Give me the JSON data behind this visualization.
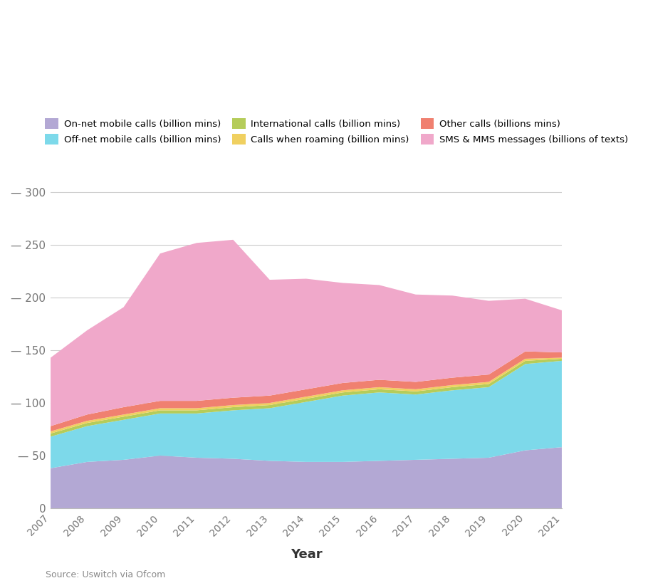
{
  "years": [
    2007,
    2008,
    2009,
    2010,
    2011,
    2012,
    2013,
    2014,
    2015,
    2016,
    2017,
    2018,
    2019,
    2020,
    2021
  ],
  "on_net": [
    38,
    44,
    46,
    50,
    48,
    47,
    45,
    44,
    44,
    45,
    46,
    47,
    48,
    55,
    58
  ],
  "off_net": [
    30,
    34,
    38,
    40,
    42,
    46,
    50,
    57,
    63,
    65,
    62,
    65,
    67,
    82,
    82
  ],
  "international": [
    3,
    3,
    3,
    3,
    3,
    3,
    3,
    3,
    3,
    3,
    3,
    3,
    3,
    3,
    2
  ],
  "roaming": [
    2,
    2,
    2,
    2,
    2,
    2,
    2,
    2,
    2,
    2,
    2,
    2,
    2,
    2,
    1
  ],
  "other": [
    5,
    6,
    7,
    7,
    7,
    7,
    7,
    7,
    7,
    7,
    7,
    7,
    7,
    7,
    5
  ],
  "sms_mms": [
    65,
    80,
    95,
    140,
    150,
    150,
    110,
    105,
    95,
    90,
    83,
    78,
    70,
    50,
    40
  ],
  "colors": {
    "on_net": "#b3a8d4",
    "off_net": "#7dd9ea",
    "international": "#b5cc5a",
    "roaming": "#f0d060",
    "other": "#f08070",
    "sms_mms": "#f0a8ca"
  },
  "legend_labels_row1": [
    "On-net mobile calls (billion mins)",
    "Off-net mobile calls (billion mins)",
    "International calls (billion mins)"
  ],
  "legend_labels_row2": [
    "Calls when roaming (billion mins)",
    "Other calls (billions mins)",
    "SMS & MMS messages (billions of texts)"
  ],
  "legend_colors_row1": [
    "#b3a8d4",
    "#7dd9ea",
    "#b5cc5a"
  ],
  "legend_colors_row2": [
    "#f0d060",
    "#f08070",
    "#f0a8ca"
  ],
  "xlabel": "Year",
  "ylim": [
    0,
    310
  ],
  "yticks": [
    0,
    50,
    100,
    150,
    200,
    250,
    300
  ],
  "source": "Source: Uswitch via Ofcom",
  "background_color": "#ffffff"
}
